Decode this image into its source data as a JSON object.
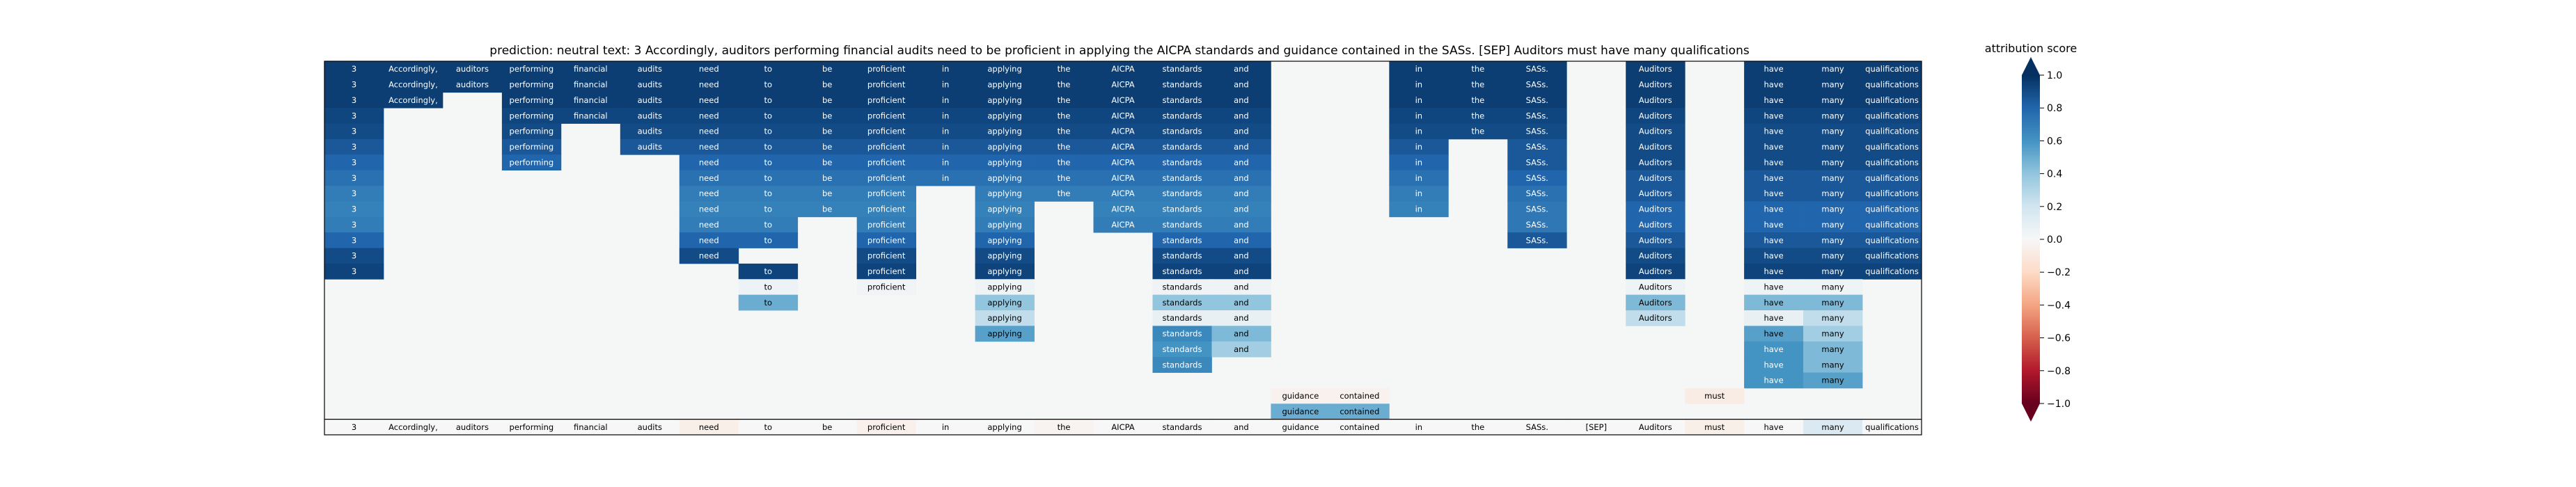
{
  "chart_data": {
    "type": "heatmap",
    "title": "prediction:  neutral     text:  3 Accordingly, auditors performing financial audits need to be proficient in applying the AICPA standards and guidance contained in the SASs. [SEP] Auditors must have many qualifications",
    "tokens": [
      "3",
      "Accordingly,",
      "auditors",
      "performing",
      "financial",
      "audits",
      "need",
      "to",
      "be",
      "proficient",
      "in",
      "applying",
      "the",
      "AICPA",
      "standards",
      "and",
      "guidance",
      "contained",
      "in",
      "the",
      "SASs.",
      "[SEP]",
      "Auditors",
      "must",
      "have",
      "many",
      "qualifications"
    ],
    "rows": [
      [
        0.95,
        0.95,
        0.95,
        0.95,
        0.95,
        0.95,
        0.95,
        0.95,
        0.95,
        0.95,
        0.95,
        0.95,
        0.95,
        0.95,
        0.95,
        0.95,
        null,
        null,
        0.95,
        0.95,
        0.95,
        null,
        0.95,
        null,
        0.95,
        0.95,
        0.95
      ],
      [
        0.95,
        0.95,
        0.95,
        0.95,
        0.95,
        0.95,
        0.95,
        0.95,
        0.95,
        0.95,
        0.95,
        0.95,
        0.95,
        0.95,
        0.95,
        0.95,
        null,
        null,
        0.95,
        0.95,
        0.95,
        null,
        0.95,
        null,
        0.95,
        0.95,
        0.95
      ],
      [
        0.95,
        0.95,
        null,
        0.95,
        0.95,
        0.95,
        0.95,
        0.95,
        0.95,
        0.95,
        0.95,
        0.95,
        0.95,
        0.95,
        0.95,
        0.95,
        null,
        null,
        0.95,
        0.95,
        0.95,
        null,
        0.95,
        null,
        0.95,
        0.95,
        0.95
      ],
      [
        0.92,
        null,
        null,
        0.92,
        0.92,
        0.92,
        0.92,
        0.92,
        0.92,
        0.92,
        0.92,
        0.92,
        0.92,
        0.92,
        0.92,
        0.92,
        null,
        null,
        0.92,
        0.92,
        0.92,
        null,
        0.92,
        null,
        0.92,
        0.92,
        0.92
      ],
      [
        0.9,
        null,
        null,
        0.9,
        null,
        0.9,
        0.9,
        0.9,
        0.9,
        0.9,
        0.9,
        0.9,
        0.9,
        0.9,
        0.9,
        0.9,
        null,
        null,
        0.9,
        0.9,
        0.9,
        null,
        0.9,
        null,
        0.9,
        0.9,
        0.9
      ],
      [
        0.85,
        null,
        null,
        0.85,
        null,
        0.85,
        0.85,
        0.85,
        0.85,
        0.85,
        0.85,
        0.85,
        0.85,
        0.85,
        0.85,
        0.85,
        null,
        null,
        0.85,
        null,
        0.85,
        null,
        0.9,
        null,
        0.9,
        0.9,
        0.9
      ],
      [
        0.8,
        null,
        null,
        0.8,
        null,
        null,
        0.8,
        0.8,
        0.8,
        0.8,
        0.8,
        0.8,
        0.8,
        0.8,
        0.8,
        0.8,
        null,
        null,
        0.8,
        null,
        0.85,
        null,
        0.9,
        null,
        0.9,
        0.9,
        0.9
      ],
      [
        0.75,
        null,
        null,
        null,
        null,
        null,
        0.75,
        0.75,
        0.75,
        0.75,
        0.75,
        0.75,
        0.75,
        0.75,
        0.75,
        0.75,
        null,
        null,
        0.75,
        null,
        0.8,
        null,
        0.85,
        null,
        0.85,
        0.85,
        0.85
      ],
      [
        0.7,
        null,
        null,
        null,
        null,
        null,
        0.7,
        0.7,
        0.7,
        0.7,
        null,
        0.7,
        0.7,
        0.7,
        0.7,
        0.7,
        null,
        null,
        0.7,
        null,
        0.75,
        null,
        0.85,
        null,
        0.85,
        0.85,
        0.85
      ],
      [
        0.68,
        null,
        null,
        null,
        null,
        null,
        0.68,
        0.68,
        0.68,
        0.68,
        null,
        0.68,
        null,
        0.68,
        0.68,
        0.68,
        null,
        null,
        0.68,
        null,
        0.72,
        null,
        0.8,
        null,
        0.8,
        0.8,
        0.8
      ],
      [
        0.7,
        null,
        null,
        null,
        null,
        null,
        0.7,
        0.7,
        null,
        0.7,
        null,
        0.7,
        null,
        0.7,
        0.7,
        0.7,
        null,
        null,
        null,
        null,
        0.72,
        null,
        0.8,
        null,
        0.8,
        0.8,
        0.8
      ],
      [
        0.8,
        null,
        null,
        null,
        null,
        null,
        0.8,
        0.8,
        null,
        0.8,
        null,
        0.8,
        null,
        null,
        0.8,
        0.8,
        null,
        null,
        null,
        null,
        0.85,
        null,
        0.85,
        null,
        0.85,
        0.85,
        0.85
      ],
      [
        0.9,
        null,
        null,
        null,
        null,
        null,
        0.9,
        null,
        null,
        0.9,
        null,
        0.9,
        null,
        null,
        0.9,
        0.9,
        null,
        null,
        null,
        null,
        null,
        null,
        0.9,
        null,
        0.9,
        0.9,
        0.9
      ],
      [
        0.93,
        null,
        null,
        null,
        null,
        null,
        null,
        0.93,
        null,
        0.93,
        null,
        0.93,
        null,
        null,
        0.93,
        0.93,
        null,
        null,
        null,
        null,
        null,
        null,
        0.93,
        null,
        0.93,
        0.93,
        0.93
      ],
      [
        null,
        null,
        null,
        null,
        null,
        null,
        null,
        0.06,
        null,
        0.03,
        null,
        0.05,
        null,
        null,
        0.04,
        0.04,
        null,
        null,
        null,
        null,
        null,
        null,
        0.05,
        null,
        0.05,
        0.05,
        null
      ],
      [
        null,
        null,
        null,
        null,
        null,
        null,
        null,
        0.5,
        null,
        null,
        null,
        0.4,
        null,
        null,
        0.4,
        0.4,
        null,
        null,
        null,
        null,
        null,
        null,
        0.45,
        null,
        0.45,
        0.45,
        null
      ],
      [
        null,
        null,
        null,
        null,
        null,
        null,
        null,
        null,
        null,
        null,
        null,
        0.25,
        null,
        null,
        0.08,
        0.08,
        null,
        null,
        null,
        null,
        null,
        null,
        0.25,
        null,
        0.08,
        0.25,
        null
      ],
      [
        null,
        null,
        null,
        null,
        null,
        null,
        null,
        null,
        null,
        null,
        null,
        0.55,
        null,
        null,
        0.65,
        0.45,
        null,
        null,
        null,
        null,
        null,
        null,
        null,
        null,
        0.55,
        0.35,
        null
      ],
      [
        null,
        null,
        null,
        null,
        null,
        null,
        null,
        null,
        null,
        null,
        null,
        null,
        null,
        null,
        0.6,
        0.35,
        null,
        null,
        null,
        null,
        null,
        null,
        null,
        null,
        0.6,
        0.45,
        null
      ],
      [
        null,
        null,
        null,
        null,
        null,
        null,
        null,
        null,
        null,
        null,
        null,
        null,
        null,
        null,
        0.65,
        null,
        null,
        null,
        null,
        null,
        null,
        null,
        null,
        null,
        0.6,
        0.45,
        null
      ],
      [
        null,
        null,
        null,
        null,
        null,
        null,
        null,
        null,
        null,
        null,
        null,
        null,
        null,
        null,
        null,
        null,
        null,
        null,
        null,
        null,
        null,
        null,
        null,
        null,
        0.6,
        0.55,
        null
      ],
      [
        null,
        null,
        null,
        null,
        null,
        null,
        null,
        null,
        null,
        null,
        null,
        null,
        null,
        null,
        null,
        null,
        -0.04,
        -0.04,
        null,
        null,
        null,
        null,
        null,
        -0.08,
        null,
        null,
        null
      ],
      [
        null,
        null,
        null,
        null,
        null,
        null,
        null,
        null,
        null,
        null,
        null,
        null,
        null,
        null,
        null,
        null,
        0.5,
        0.5,
        null,
        null,
        null,
        null,
        null,
        null,
        null,
        null,
        null
      ],
      [
        0.0,
        0.0,
        0.0,
        0.0,
        0.0,
        0.0,
        -0.06,
        0.0,
        0.0,
        -0.05,
        0.0,
        0.0,
        -0.03,
        0.0,
        0.0,
        0.0,
        0.0,
        0.0,
        0.0,
        0.0,
        0.0,
        0.0,
        0.0,
        -0.06,
        0.0,
        0.15,
        0.0
      ]
    ],
    "colorbar": {
      "label": "attribution score",
      "range": [
        -1.0,
        1.0
      ],
      "ticks": [
        -1.0,
        -0.8,
        -0.6,
        -0.4,
        -0.2,
        0.0,
        0.2,
        0.4,
        0.6,
        0.8,
        1.0
      ],
      "tick_labels": [
        "−1.0",
        "−0.8",
        "−0.6",
        "−0.4",
        "−0.2",
        "0.0",
        "0.2",
        "0.4",
        "0.6",
        "0.8",
        "1.0"
      ]
    },
    "colors": {
      "negative": "#67001f",
      "neutral": "#f7f7f7",
      "positive": "#053061",
      "background": "#f5f7f7"
    }
  }
}
